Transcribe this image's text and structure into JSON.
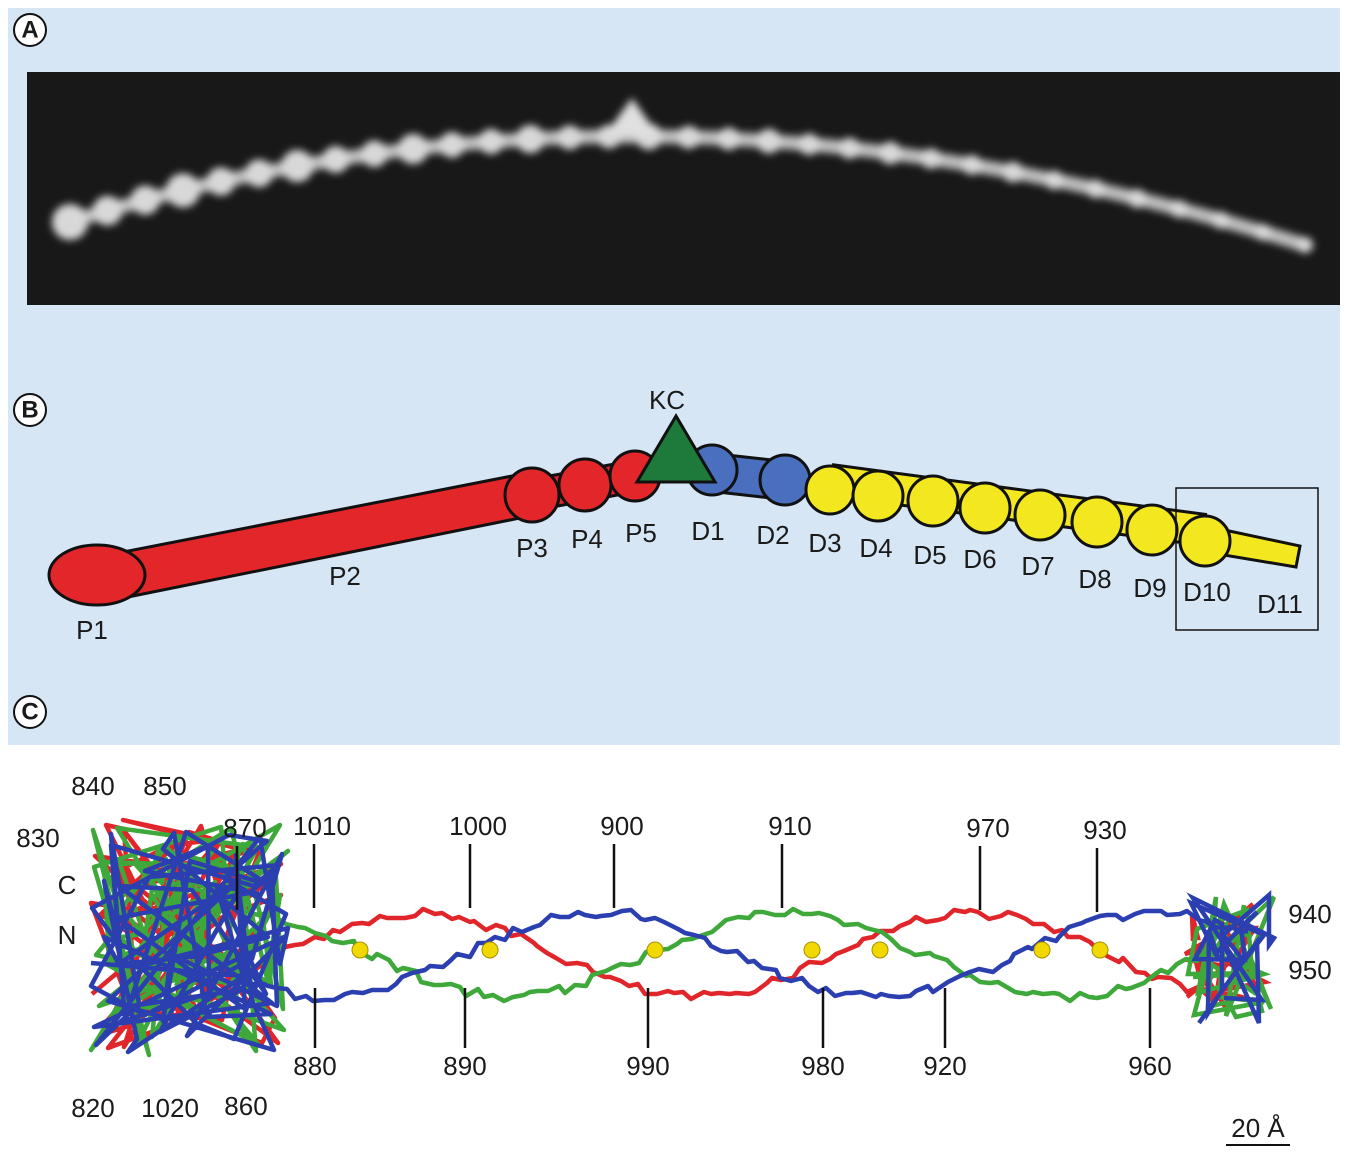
{
  "panels": [
    {
      "label": "A"
    },
    {
      "label": "B"
    },
    {
      "label": "C"
    }
  ],
  "diagram_b": {
    "apex_label": "KC",
    "segments": [
      "P1",
      "P2",
      "P3",
      "P4",
      "P5",
      "D1",
      "D2",
      "D3",
      "D4",
      "D5",
      "D6",
      "D7",
      "D8",
      "D9",
      "D10",
      "D11"
    ]
  },
  "structure_c": {
    "termini": [
      "C",
      "N"
    ],
    "residues_top": [
      "840",
      "850",
      "830",
      "870",
      "1010",
      "1000",
      "900",
      "910",
      "970",
      "930",
      "940",
      "950"
    ],
    "residues_bottom": [
      "820",
      "1020",
      "860",
      "880",
      "890",
      "990",
      "980",
      "920",
      "960"
    ],
    "scale_bar": "20 Å"
  }
}
